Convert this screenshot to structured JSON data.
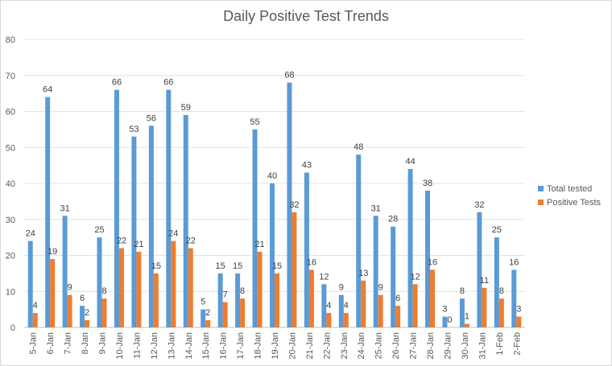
{
  "chart_data": {
    "type": "bar",
    "title": "Daily Positive Test Trends",
    "xlabel": "",
    "ylabel": "",
    "ylim": [
      0,
      80
    ],
    "yticks": [
      0,
      10,
      20,
      30,
      40,
      50,
      60,
      70,
      80
    ],
    "grid": true,
    "legend_position": "right",
    "categories": [
      "5-Jan",
      "6-Jan",
      "7-Jan",
      "8-Jan",
      "9-Jan",
      "10-Jan",
      "11-Jan",
      "12-Jan",
      "13-Jan",
      "14-Jan",
      "15-Jan",
      "16-Jan",
      "17-Jan",
      "18-Jan",
      "19-Jan",
      "20-Jan",
      "21-Jan",
      "22-Jan",
      "23-Jan",
      "24-Jan",
      "25-Jan",
      "26-Jan",
      "27-Jan",
      "28-Jan",
      "29-Jan",
      "30-Jan",
      "31-Jan",
      "1-Feb",
      "2-Feb"
    ],
    "series": [
      {
        "name": "Total tested",
        "color": "#5b9bd5",
        "values": [
          24,
          64,
          31,
          6,
          25,
          66,
          53,
          56,
          66,
          59,
          5,
          15,
          15,
          55,
          40,
          68,
          43,
          12,
          9,
          48,
          31,
          28,
          44,
          38,
          3,
          8,
          32,
          25,
          16
        ]
      },
      {
        "name": "Positive Tests",
        "color": "#ed7d31",
        "values": [
          4,
          19,
          9,
          2,
          8,
          22,
          21,
          15,
          24,
          22,
          2,
          7,
          8,
          21,
          15,
          32,
          16,
          4,
          4,
          13,
          9,
          6,
          12,
          16,
          0,
          1,
          11,
          8,
          3
        ]
      }
    ]
  }
}
